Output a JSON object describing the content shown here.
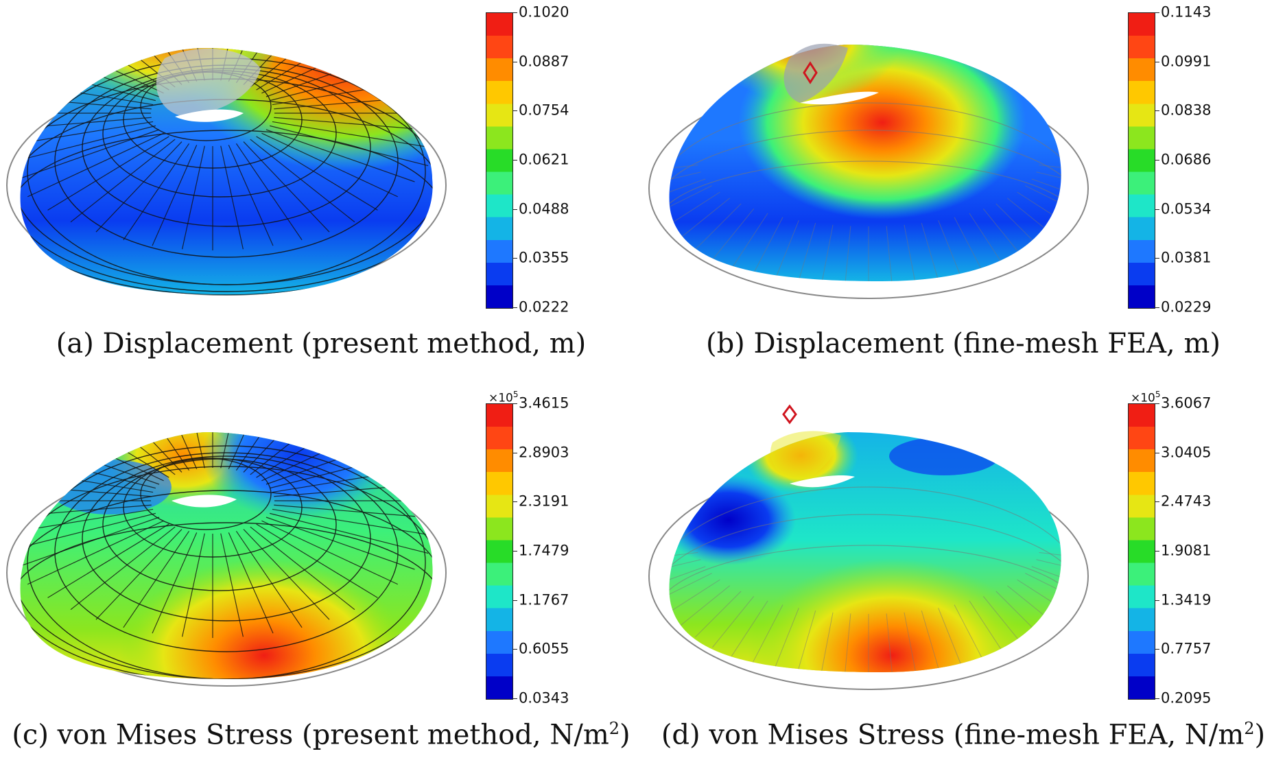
{
  "panels": [
    {
      "id": "a",
      "caption": "(a) Displacement (present method, m)",
      "multiplier": "",
      "colorbar_ticks": [
        "0.1020",
        "0.0887",
        "0.0754",
        "0.0621",
        "0.0488",
        "0.0355",
        "0.0222"
      ],
      "mesh_style": "coarse",
      "marker": false
    },
    {
      "id": "b",
      "caption": "(b) Displacement (fine-mesh FEA, m)",
      "multiplier": "",
      "colorbar_ticks": [
        "0.1143",
        "0.0991",
        "0.0838",
        "0.0686",
        "0.0534",
        "0.0381",
        "0.0229"
      ],
      "mesh_style": "fine",
      "marker": true
    },
    {
      "id": "c",
      "caption_main": "(c) von Mises Stress (present method, N/m",
      "caption_sup": "2",
      "caption_tail": ")",
      "multiplier_base": "×10",
      "multiplier_exp": "5",
      "colorbar_ticks": [
        "3.4615",
        "2.8903",
        "2.3191",
        "1.7479",
        "1.1767",
        "0.6055",
        "0.0343"
      ],
      "mesh_style": "coarse",
      "marker": false
    },
    {
      "id": "d",
      "caption_main": "(d) von Mises Stress (fine-mesh FEA, N/m",
      "caption_sup": "2",
      "caption_tail": ")",
      "multiplier_base": "×10",
      "multiplier_exp": "5",
      "colorbar_ticks": [
        "3.6067",
        "3.0405",
        "2.4743",
        "1.9081",
        "1.3419",
        "0.7757",
        "0.2095"
      ],
      "mesh_style": "fine",
      "marker": true
    }
  ],
  "colormap": [
    "#0000c8",
    "#0a3cf0",
    "#1e78ff",
    "#14b4e6",
    "#1ee6c8",
    "#3cf07a",
    "#28dc28",
    "#8ce61e",
    "#e6e614",
    "#ffc800",
    "#ff8c00",
    "#ff4614",
    "#f01e14"
  ]
}
